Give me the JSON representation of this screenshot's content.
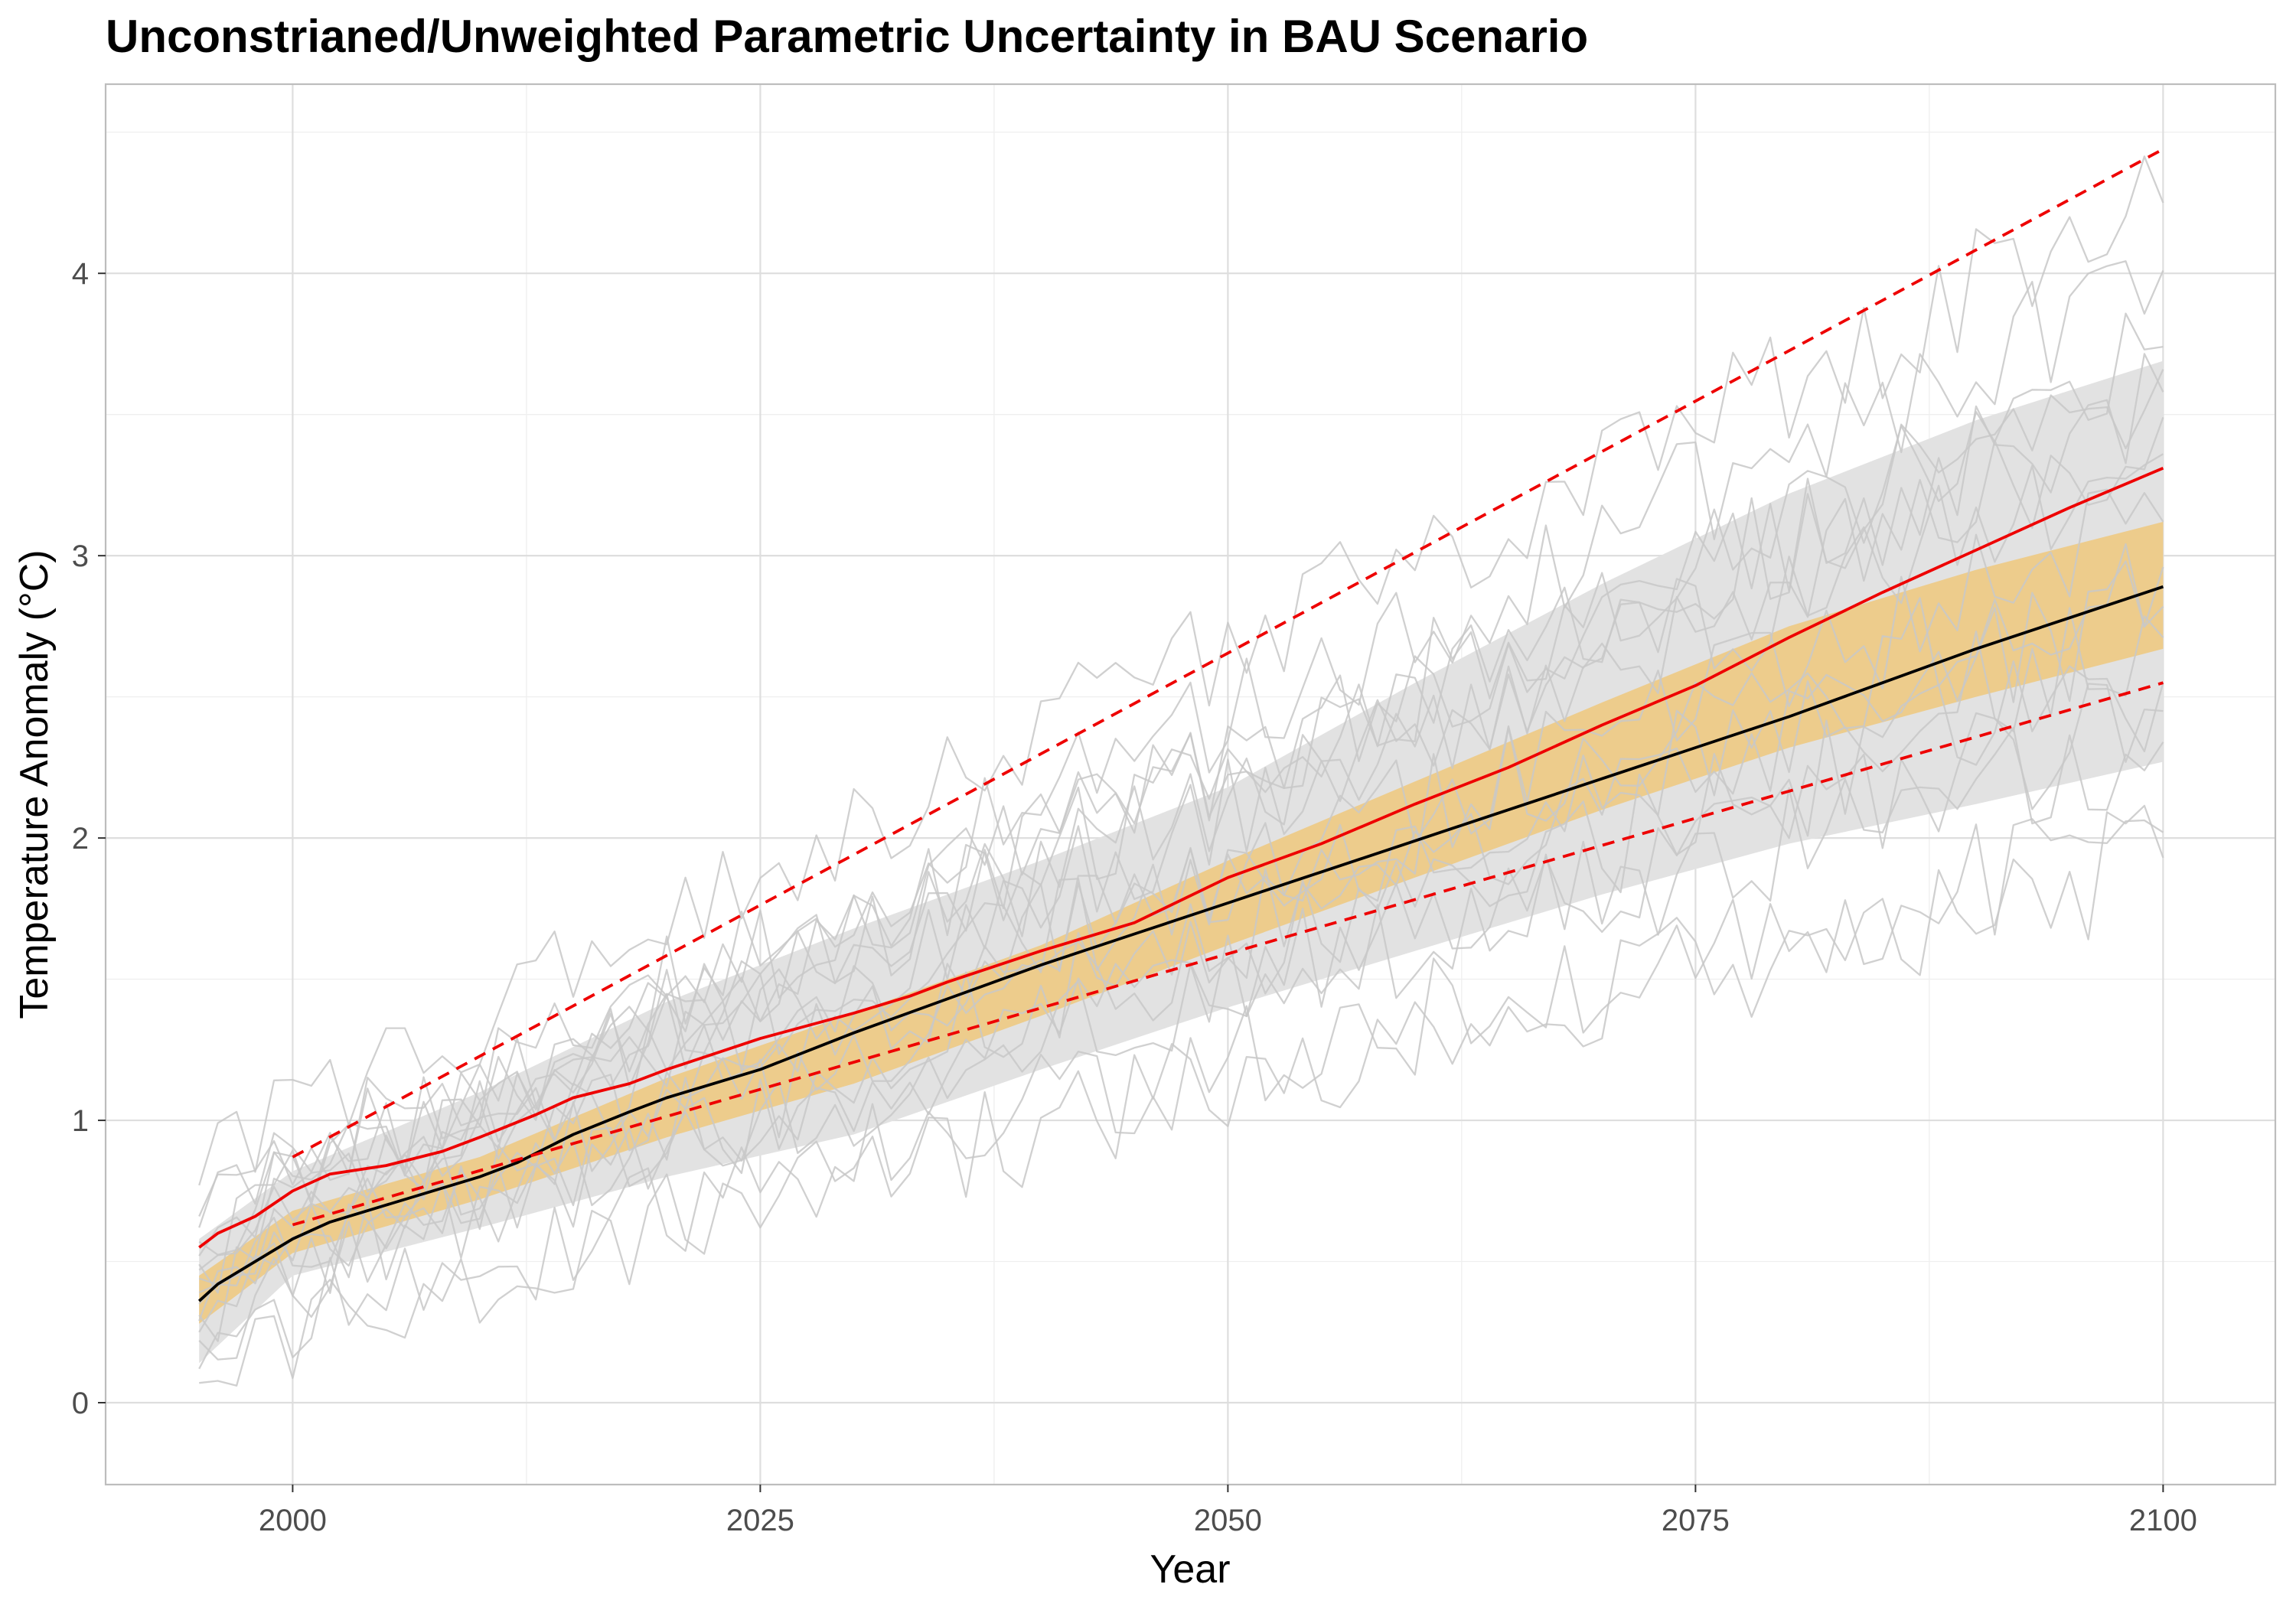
{
  "chart_data": {
    "type": "line",
    "title": "Unconstrianed/Unweighted Parametric Uncertainty in BAU Scenario",
    "xlabel": "Year",
    "ylabel": "Temperature Anomaly (°C)",
    "xlim": [
      1990,
      2106
    ],
    "ylim": [
      -0.29,
      4.67
    ],
    "x_ticks": [
      2000,
      2025,
      2050,
      2075,
      2100
    ],
    "x_tick_labels": [
      "2000",
      "2025",
      "2050",
      "2075",
      "2100"
    ],
    "y_ticks": [
      0,
      1,
      2,
      3,
      4
    ],
    "y_tick_labels": [
      "0",
      "1",
      "2",
      "3",
      "4"
    ],
    "grid": true,
    "legend": "none",
    "colors": {
      "outer_band": "#e2e2e2",
      "inner_band": "#eeca84",
      "median": "#000000",
      "mean": "#ee0000",
      "bounds": "#ee0000",
      "ensemble": "#c8c8c8"
    },
    "bands": [
      {
        "role": "outer-band",
        "x": [
          1995,
          2000,
          2010,
          2020,
          2030,
          2040,
          2050,
          2060,
          2070,
          2080,
          2090,
          2100
        ],
        "lower": [
          0.14,
          0.45,
          0.62,
          0.8,
          0.95,
          1.18,
          1.4,
          1.6,
          1.8,
          1.98,
          2.12,
          2.27
        ],
        "upper": [
          0.58,
          0.82,
          1.1,
          1.42,
          1.68,
          1.92,
          2.18,
          2.55,
          2.9,
          3.22,
          3.48,
          3.69
        ]
      },
      {
        "role": "inner-band",
        "x": [
          1995,
          2000,
          2010,
          2020,
          2030,
          2040,
          2050,
          2060,
          2070,
          2080,
          2090,
          2100
        ],
        "lower": [
          0.28,
          0.53,
          0.72,
          0.94,
          1.13,
          1.37,
          1.62,
          1.86,
          2.1,
          2.32,
          2.5,
          2.67
        ],
        "upper": [
          0.45,
          0.68,
          0.87,
          1.15,
          1.38,
          1.62,
          1.92,
          2.2,
          2.48,
          2.75,
          2.95,
          3.12
        ]
      }
    ],
    "series": [
      {
        "role": "median",
        "style": "solid",
        "x": [
          1995,
          1996,
          1998,
          2000,
          2002,
          2005,
          2008,
          2010,
          2012,
          2015,
          2018,
          2020,
          2025,
          2030,
          2035,
          2040,
          2045,
          2050,
          2055,
          2060,
          2065,
          2070,
          2075,
          2080,
          2085,
          2090,
          2095,
          2100
        ],
        "y": [
          0.36,
          0.42,
          0.5,
          0.58,
          0.64,
          0.7,
          0.76,
          0.8,
          0.85,
          0.95,
          1.03,
          1.08,
          1.18,
          1.31,
          1.43,
          1.55,
          1.66,
          1.77,
          1.88,
          1.99,
          2.1,
          2.21,
          2.32,
          2.43,
          2.55,
          2.67,
          2.78,
          2.89
        ]
      },
      {
        "role": "mean",
        "style": "solid",
        "x": [
          1995,
          1996,
          1998,
          2000,
          2002,
          2005,
          2008,
          2010,
          2013,
          2015,
          2018,
          2020,
          2025,
          2030,
          2033,
          2035,
          2040,
          2045,
          2050,
          2055,
          2060,
          2065,
          2070,
          2075,
          2080,
          2085,
          2090,
          2095,
          2100
        ],
        "y": [
          0.55,
          0.6,
          0.66,
          0.75,
          0.81,
          0.84,
          0.89,
          0.94,
          1.02,
          1.08,
          1.13,
          1.18,
          1.29,
          1.38,
          1.44,
          1.49,
          1.6,
          1.7,
          1.86,
          1.98,
          2.12,
          2.25,
          2.4,
          2.54,
          2.71,
          2.87,
          3.02,
          3.17,
          3.31
        ]
      },
      {
        "role": "upper-bound",
        "style": "dashed",
        "x": [
          2000,
          2100
        ],
        "y": [
          0.87,
          4.44
        ]
      },
      {
        "role": "lower-bound",
        "style": "dashed",
        "x": [
          2000,
          2100
        ],
        "y": [
          0.63,
          2.55
        ]
      }
    ],
    "ensemble": {
      "x_start": 1995,
      "x_end": 2100,
      "count": 16,
      "endpoints": [
        [
          0.77,
          4.25
        ],
        [
          0.52,
          4.01
        ],
        [
          0.44,
          3.74
        ],
        [
          0.62,
          3.58
        ],
        [
          0.35,
          3.49
        ],
        [
          0.57,
          3.36
        ],
        [
          0.29,
          3.12
        ],
        [
          0.47,
          2.96
        ],
        [
          0.22,
          2.82
        ],
        [
          0.66,
          2.71
        ],
        [
          0.39,
          2.55
        ],
        [
          0.31,
          2.34
        ],
        [
          0.12,
          2.02
        ],
        [
          0.07,
          1.93
        ],
        [
          0.49,
          3.66
        ],
        [
          0.25,
          2.45
        ]
      ]
    }
  }
}
